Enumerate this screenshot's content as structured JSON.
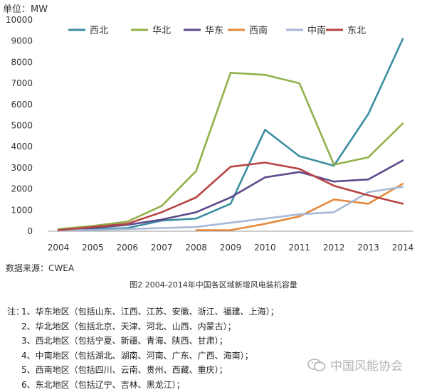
{
  "unit_label": "单位：MW",
  "source": "数据来源：CWEA",
  "caption": "图2 2004-2014年中国各区域新增风电装机容量",
  "notes": {
    "prefix": "注：",
    "items": [
      "1、华东地区（包括山东、江西、江苏、安徽、浙江、福建、上海）；",
      "2、华北地区（包括北京、天津、河北、山西、内蒙古）；",
      "3、西北地区（包括宁夏、新疆、青海、陕西、甘肃）；",
      "4、中南地区（包括湖北、湖南、河南、广东、广西、海南）；",
      "5、西南地区（包括四川、云南、贵州、西藏、重庆）；",
      "6、东北地区（包括辽宁、吉林、黑龙江）；"
    ]
  },
  "watermark": {
    "text": "中国风能协会",
    "icon": "wechat-icon"
  },
  "chart_data": {
    "type": "line",
    "x": [
      2004,
      2005,
      2006,
      2007,
      2008,
      2009,
      2010,
      2011,
      2012,
      2013,
      2014
    ],
    "ylim": [
      0,
      10000
    ],
    "yticks": [
      0,
      1000,
      2000,
      3000,
      4000,
      5000,
      6000,
      7000,
      8000,
      9000,
      10000
    ],
    "ylabel": "单位：MW",
    "grid": false,
    "legend_position": "top",
    "series": [
      {
        "name": "西北",
        "color": "#3b8ea0",
        "values": [
          50,
          100,
          150,
          500,
          600,
          1300,
          4800,
          3550,
          3100,
          5550,
          9100
        ]
      },
      {
        "name": "华北",
        "color": "#92b14a",
        "values": [
          100,
          250,
          450,
          1200,
          2850,
          7500,
          7400,
          7000,
          3150,
          3500,
          5100
        ]
      },
      {
        "name": "华东",
        "color": "#5e4a8c",
        "values": [
          50,
          150,
          300,
          550,
          900,
          1600,
          2550,
          2800,
          2350,
          2450,
          3350
        ]
      },
      {
        "name": "西南",
        "color": "#e58a3c",
        "values": [
          null,
          null,
          null,
          null,
          50,
          50,
          350,
          700,
          1500,
          1300,
          2250
        ]
      },
      {
        "name": "中南",
        "color": "#a6b8d6",
        "values": [
          50,
          50,
          100,
          150,
          200,
          400,
          600,
          800,
          900,
          1850,
          2100
        ]
      },
      {
        "name": "东北",
        "color": "#b84343",
        "values": [
          50,
          200,
          350,
          900,
          1600,
          3050,
          3250,
          2950,
          2150,
          1700,
          1300
        ]
      }
    ]
  }
}
